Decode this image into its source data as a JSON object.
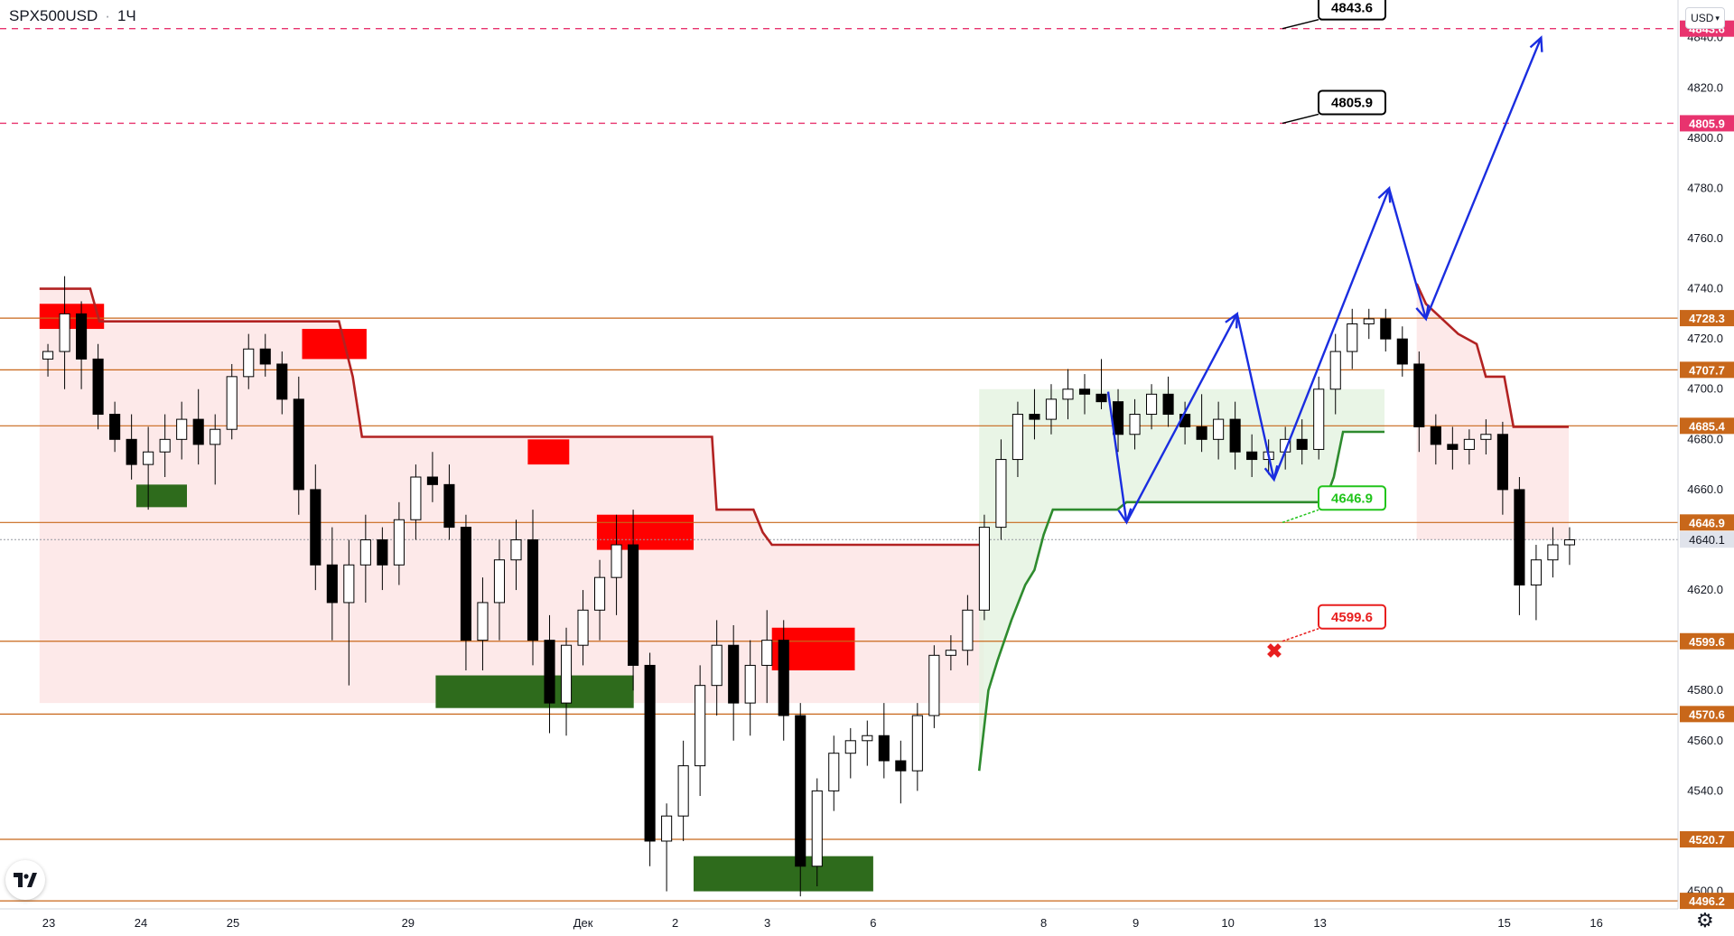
{
  "header": {
    "symbol": "SPX500USD",
    "interval": "1Ч",
    "currency": "USD"
  },
  "chart_data": {
    "type": "candlestick",
    "y_axis": {
      "ticks": [
        4500.0,
        4520.0,
        4540.0,
        4560.0,
        4580.0,
        4600.0,
        4620.0,
        4640.0,
        4660.0,
        4680.0,
        4700.0,
        4720.0,
        4740.0,
        4760.0,
        4780.0,
        4800.0,
        4820.0,
        4840.0
      ],
      "range": [
        4493,
        4855
      ]
    },
    "x_axis": {
      "labels": [
        {
          "label": "23",
          "i": 0
        },
        {
          "label": "24",
          "i": 1
        },
        {
          "label": "25",
          "i": 2
        },
        {
          "label": "29",
          "i": 3.9
        },
        {
          "label": "Дек",
          "i": 5.8
        },
        {
          "label": "2",
          "i": 6.8
        },
        {
          "label": "3",
          "i": 7.8
        },
        {
          "label": "6",
          "i": 8.95
        },
        {
          "label": "8",
          "i": 10.8
        },
        {
          "label": "9",
          "i": 11.8
        },
        {
          "label": "10",
          "i": 12.8
        },
        {
          "label": "13",
          "i": 13.8
        },
        {
          "label": "15",
          "i": 15.8
        },
        {
          "label": "16",
          "i": 16.8
        }
      ]
    },
    "horizontal_levels": [
      {
        "value": 4728.3,
        "label": "4728.3"
      },
      {
        "value": 4707.7,
        "label": "4707.7"
      },
      {
        "value": 4685.4,
        "label": "4685.4"
      },
      {
        "value": 4646.9,
        "label": "4646.9"
      },
      {
        "value": 4599.6,
        "label": "4599.6"
      },
      {
        "value": 4570.6,
        "label": "4570.6"
      },
      {
        "value": 4520.7,
        "label": "4520.7"
      },
      {
        "value": 4496.2,
        "label": "4496.2"
      }
    ],
    "target_levels": [
      {
        "value": 4843.6,
        "label": "4843.6"
      },
      {
        "value": 4805.9,
        "label": "4805.9"
      }
    ],
    "current_price": {
      "value": 4640.1,
      "label": "4640.1"
    },
    "callouts": [
      {
        "label": "4843.6",
        "kind": "target"
      },
      {
        "label": "4805.9",
        "kind": "target"
      },
      {
        "label": "4646.9",
        "kind": "entry"
      },
      {
        "label": "4599.6",
        "kind": "stop"
      }
    ],
    "price_path": [
      [
        4712,
        4718,
        4705,
        4715
      ],
      [
        4715,
        4745,
        4700,
        4730
      ],
      [
        4730,
        4735,
        4700,
        4712
      ],
      [
        4712,
        4718,
        4684,
        4690
      ],
      [
        4690,
        4695,
        4675,
        4680
      ],
      [
        4680,
        4690,
        4664,
        4670
      ],
      [
        4670,
        4685,
        4652,
        4675
      ],
      [
        4675,
        4690,
        4665,
        4680
      ],
      [
        4680,
        4695,
        4672,
        4688
      ],
      [
        4688,
        4700,
        4670,
        4678
      ],
      [
        4678,
        4690,
        4662,
        4684
      ],
      [
        4684,
        4710,
        4680,
        4705
      ],
      [
        4705,
        4722,
        4700,
        4716
      ],
      [
        4716,
        4722,
        4705,
        4710
      ],
      [
        4710,
        4715,
        4690,
        4696
      ],
      [
        4696,
        4705,
        4650,
        4660
      ],
      [
        4660,
        4670,
        4620,
        4630
      ],
      [
        4630,
        4645,
        4600,
        4615
      ],
      [
        4615,
        4640,
        4582,
        4630
      ],
      [
        4630,
        4650,
        4615,
        4640
      ],
      [
        4640,
        4645,
        4620,
        4630
      ],
      [
        4630,
        4655,
        4622,
        4648
      ],
      [
        4648,
        4670,
        4640,
        4665
      ],
      [
        4665,
        4675,
        4655,
        4662
      ],
      [
        4662,
        4670,
        4640,
        4645
      ],
      [
        4645,
        4650,
        4588,
        4600
      ],
      [
        4600,
        4625,
        4588,
        4615
      ],
      [
        4615,
        4640,
        4600,
        4632
      ],
      [
        4632,
        4648,
        4620,
        4640
      ],
      [
        4640,
        4652,
        4590,
        4600
      ],
      [
        4600,
        4610,
        4563,
        4575
      ],
      [
        4575,
        4605,
        4562,
        4598
      ],
      [
        4598,
        4620,
        4590,
        4612
      ],
      [
        4612,
        4632,
        4600,
        4625
      ],
      [
        4625,
        4650,
        4610,
        4638
      ],
      [
        4638,
        4652,
        4580,
        4590
      ],
      [
        4590,
        4595,
        4510,
        4520
      ],
      [
        4520,
        4535,
        4500,
        4530
      ],
      [
        4530,
        4560,
        4520,
        4550
      ],
      [
        4550,
        4590,
        4538,
        4582
      ],
      [
        4582,
        4608,
        4570,
        4598
      ],
      [
        4598,
        4606,
        4560,
        4575
      ],
      [
        4575,
        4600,
        4562,
        4590
      ],
      [
        4590,
        4612,
        4575,
        4600
      ],
      [
        4600,
        4608,
        4560,
        4570
      ],
      [
        4570,
        4575,
        4498,
        4510
      ],
      [
        4510,
        4545,
        4502,
        4540
      ],
      [
        4540,
        4562,
        4532,
        4555
      ],
      [
        4555,
        4565,
        4545,
        4560
      ],
      [
        4560,
        4568,
        4550,
        4562
      ],
      [
        4562,
        4575,
        4545,
        4552
      ],
      [
        4552,
        4560,
        4535,
        4548
      ],
      [
        4548,
        4575,
        4540,
        4570
      ],
      [
        4570,
        4598,
        4565,
        4594
      ],
      [
        4594,
        4602,
        4588,
        4596
      ],
      [
        4596,
        4618,
        4590,
        4612
      ],
      [
        4612,
        4650,
        4608,
        4645
      ],
      [
        4645,
        4680,
        4640,
        4672
      ],
      [
        4672,
        4695,
        4665,
        4690
      ],
      [
        4690,
        4700,
        4680,
        4688
      ],
      [
        4688,
        4702,
        4682,
        4696
      ],
      [
        4696,
        4708,
        4688,
        4700
      ],
      [
        4700,
        4706,
        4690,
        4698
      ],
      [
        4698,
        4712,
        4692,
        4695
      ],
      [
        4695,
        4700,
        4675,
        4682
      ],
      [
        4682,
        4696,
        4676,
        4690
      ],
      [
        4690,
        4702,
        4684,
        4698
      ],
      [
        4698,
        4705,
        4685,
        4690
      ],
      [
        4690,
        4695,
        4678,
        4685
      ],
      [
        4685,
        4698,
        4675,
        4680
      ],
      [
        4680,
        4695,
        4672,
        4688
      ],
      [
        4688,
        4695,
        4668,
        4675
      ],
      [
        4675,
        4682,
        4665,
        4672
      ],
      [
        4672,
        4680,
        4666,
        4675
      ],
      [
        4675,
        4685,
        4668,
        4680
      ],
      [
        4680,
        4688,
        4670,
        4676
      ],
      [
        4676,
        4705,
        4672,
        4700
      ],
      [
        4700,
        4722,
        4690,
        4715
      ],
      [
        4715,
        4732,
        4708,
        4726
      ],
      [
        4726,
        4732,
        4720,
        4728
      ],
      [
        4728,
        4732,
        4715,
        4720
      ],
      [
        4720,
        4725,
        4705,
        4710
      ],
      [
        4710,
        4715,
        4675,
        4685
      ],
      [
        4685,
        4690,
        4670,
        4678
      ],
      [
        4678,
        4685,
        4668,
        4676
      ],
      [
        4676,
        4684,
        4670,
        4680
      ],
      [
        4680,
        4688,
        4674,
        4682
      ],
      [
        4682,
        4687,
        4650,
        4660
      ],
      [
        4660,
        4665,
        4610,
        4622
      ],
      [
        4622,
        4638,
        4608,
        4632
      ],
      [
        4632,
        4645,
        4625,
        4638
      ],
      [
        4638,
        4645,
        4630,
        4640
      ]
    ],
    "resistance_line": [
      [
        -0.1,
        4740
      ],
      [
        0.45,
        4740
      ],
      [
        0.55,
        4727
      ],
      [
        3.15,
        4727
      ],
      [
        3.3,
        4705
      ],
      [
        3.4,
        4681
      ],
      [
        7.2,
        4681
      ],
      [
        7.25,
        4652
      ],
      [
        7.65,
        4652
      ],
      [
        7.75,
        4643
      ],
      [
        7.85,
        4638
      ],
      [
        10.15,
        4638
      ]
    ],
    "resistance_line_2": [
      [
        14.85,
        4742
      ],
      [
        14.95,
        4734
      ],
      [
        15.3,
        4722
      ],
      [
        15.5,
        4718
      ],
      [
        15.6,
        4705
      ],
      [
        15.8,
        4705
      ],
      [
        15.9,
        4685
      ],
      [
        16.5,
        4685
      ]
    ],
    "support_line": [
      [
        10.1,
        4548
      ],
      [
        10.2,
        4580
      ],
      [
        10.3,
        4592
      ],
      [
        10.45,
        4608
      ],
      [
        10.6,
        4622
      ],
      [
        10.7,
        4628
      ],
      [
        10.8,
        4642
      ],
      [
        10.9,
        4652
      ],
      [
        11.6,
        4652
      ],
      [
        11.7,
        4655
      ],
      [
        13.85,
        4655
      ],
      [
        13.95,
        4665
      ],
      [
        14.05,
        4683
      ],
      [
        14.5,
        4683
      ]
    ],
    "blue_forecast_path": [
      [
        11.5,
        4699
      ],
      [
        11.7,
        4647
      ],
      [
        12.9,
        4730
      ],
      [
        13.3,
        4664
      ],
      [
        14.55,
        4780
      ],
      [
        14.95,
        4728
      ],
      [
        16.2,
        4840
      ]
    ],
    "zones": [
      {
        "kind": "supply",
        "i0": -0.1,
        "i1": 0.6,
        "y0": 4724,
        "y1": 4734
      },
      {
        "kind": "supply",
        "i0": 2.75,
        "i1": 3.45,
        "y0": 4712,
        "y1": 4724
      },
      {
        "kind": "supply",
        "i0": 5.2,
        "i1": 5.65,
        "y0": 4670,
        "y1": 4680
      },
      {
        "kind": "supply",
        "i0": 5.95,
        "i1": 7.0,
        "y0": 4636,
        "y1": 4650
      },
      {
        "kind": "supply",
        "i0": 7.85,
        "i1": 8.75,
        "y0": 4588,
        "y1": 4605
      },
      {
        "kind": "demand",
        "i0": 0.95,
        "i1": 1.5,
        "y0": 4653,
        "y1": 4662
      },
      {
        "kind": "demand",
        "i0": 4.2,
        "i1": 6.35,
        "y0": 4573,
        "y1": 4586
      },
      {
        "kind": "demand",
        "i0": 7.0,
        "i1": 8.95,
        "y0": 4500,
        "y1": 4514
      }
    ],
    "colors": {
      "resistance": "#b22222",
      "support": "#2e8b2e",
      "levels": "#c8671a",
      "targets": "#e8336e",
      "forecast": "#1a2de0",
      "entry": "#22c41c",
      "stop": "#e81f1f",
      "supply_zone": "#ff0000",
      "demand_zone": "#2e6b1c",
      "bull": "#ffffff",
      "bear": "#000000"
    }
  }
}
